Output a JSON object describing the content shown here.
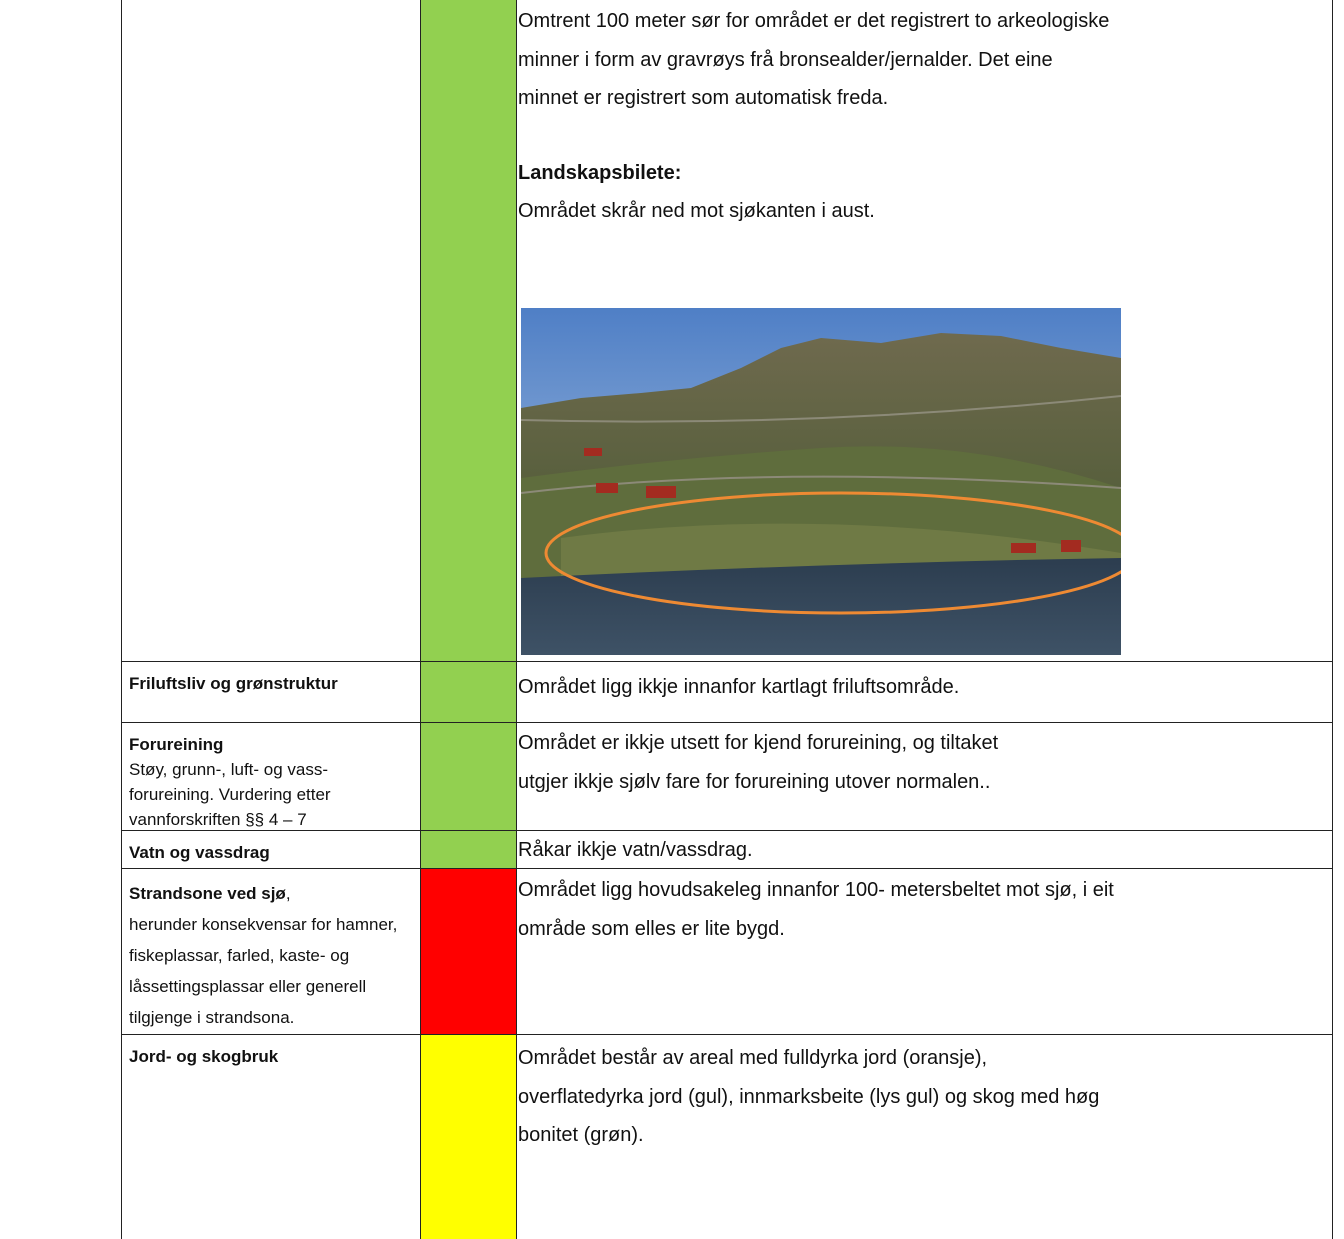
{
  "table": {
    "rows": [
      {
        "color": "#92d050",
        "content": [
          {
            "lines": [
              "Omtrent 100 meter sør for området er det registrert to arkeologiske",
              "minner i form av gravrøys frå bronsealder/jernalder. Det eine",
              "minnet er registrert som automatisk freda."
            ]
          },
          {
            "heading": "Landskapsbilete:",
            "lines": [
              "Området skrår ned mot sjøkanten i aust."
            ]
          }
        ]
      },
      {
        "topic": "Friluftsliv og grønstruktur",
        "color": "#92d050",
        "content": [
          {
            "lines": [
              "Området ligg ikkje innanfor kartlagt friluftsområde."
            ]
          }
        ]
      },
      {
        "topic": "Forureining",
        "detail": [
          "Støy, grunn-, luft- og vass-",
          "forureining. Vurdering etter",
          "vannforskriften §§ 4 – 7"
        ],
        "color": "#92d050",
        "content": [
          {
            "lines": [
              "Området er ikkje utsett for kjend forureining, og tiltaket",
              "utgjer ikkje sjølv fare for forureining utover normalen.."
            ]
          }
        ]
      },
      {
        "topic": "Vatn og vassdrag",
        "color": "#92d050",
        "content": [
          {
            "lines": [
              "Råkar ikkje vatn/vassdrag."
            ]
          }
        ]
      },
      {
        "topic": "Strandsone ved sjø",
        "topic_suffix": ",",
        "detail": [
          "herunder konsekvensar for hamner,",
          "fiskeplassar, farled, kaste- og",
          "låssettingsplassar eller generell",
          "tilgjenge i strandsona."
        ],
        "color": "#ff0000",
        "content": [
          {
            "lines": [
              "Området ligg hovudsakeleg innanfor 100- metersbeltet mot sjø, i eit",
              "område som elles er lite bygd."
            ]
          }
        ]
      },
      {
        "topic": "Jord- og skogbruk",
        "color": "#ffff00",
        "content": [
          {
            "lines": [
              "Området består av areal med fulldyrka jord (oransje),",
              "overflatedyrka jord (gul), innmarksbeite (lys gul) og skog med høg",
              "bonitet (grøn)."
            ]
          }
        ]
      }
    ]
  }
}
